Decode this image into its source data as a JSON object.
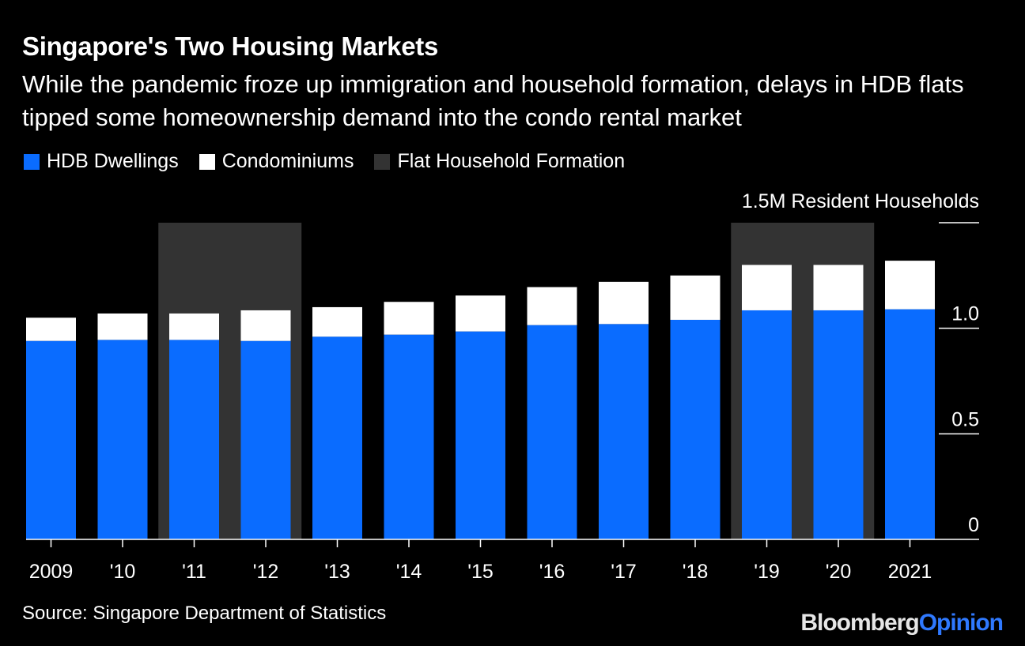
{
  "title": "Singapore's Two Housing Markets",
  "subtitle": "While the pandemic froze up immigration and household formation, delays in HDB flats tipped some homeownership demand into the condo rental market",
  "legend": [
    {
      "label": "HDB Dwellings",
      "color": "#0a6cff"
    },
    {
      "label": "Condominiums",
      "color": "#ffffff"
    },
    {
      "label": "Flat Household Formation",
      "color": "#333333"
    }
  ],
  "source": "Source: Singapore Department of Statistics",
  "brand": {
    "part1": "Bloomberg",
    "part2": "Opinion"
  },
  "chart_data": {
    "type": "bar",
    "stacked": true,
    "categories": [
      "2009",
      "'10",
      "'11",
      "'12",
      "'13",
      "'14",
      "'15",
      "'16",
      "'17",
      "'18",
      "'19",
      "'20",
      "2021"
    ],
    "series": [
      {
        "name": "HDB Dwellings",
        "color": "#0a6cff",
        "values": [
          0.94,
          0.945,
          0.945,
          0.94,
          0.96,
          0.97,
          0.985,
          1.015,
          1.02,
          1.04,
          1.085,
          1.085,
          1.09
        ]
      },
      {
        "name": "Condominiums",
        "color": "#ffffff",
        "values": [
          0.11,
          0.125,
          0.125,
          0.145,
          0.14,
          0.155,
          0.17,
          0.18,
          0.2,
          0.21,
          0.215,
          0.215,
          0.23
        ]
      }
    ],
    "highlight_bands": {
      "name": "Flat Household Formation",
      "color": "#333333",
      "ranges": [
        [
          "'11",
          "'12"
        ],
        [
          "'19",
          "'20"
        ]
      ],
      "top": 1.5
    },
    "y_top_label": "1.5M Resident Households",
    "yticks": [
      {
        "value": 0,
        "label": "0"
      },
      {
        "value": 0.5,
        "label": "0.5"
      },
      {
        "value": 1.0,
        "label": "1.0"
      },
      {
        "value": 1.5,
        "label": ""
      }
    ],
    "ylim": [
      0,
      1.5
    ],
    "grid": false,
    "legend_position": "top-left"
  }
}
